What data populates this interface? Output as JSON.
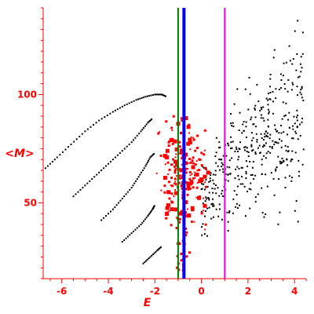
{
  "chart_data": {
    "type": "scatter",
    "xlabel": "E",
    "ylabel": "<M>",
    "xlim": [
      -6.8,
      4.5
    ],
    "ylim": [
      15,
      140
    ],
    "x_ticks": [
      -6,
      -4,
      -2,
      0,
      2,
      4
    ],
    "y_ticks": [
      50,
      100
    ],
    "y_minor_step": 5,
    "x_minor_step": 0.5,
    "grid": false,
    "colors": {
      "axis": "#ff0000",
      "tick_label": "#ff0000",
      "black_points": "#000000",
      "red_points": "#ff0000",
      "vline_green": "#008000",
      "vline_blue": "#0000ff",
      "vline_magenta": "#ff00ff"
    },
    "vertical_lines": [
      {
        "name": "green line",
        "x": -1.0,
        "color": "#008000"
      },
      {
        "name": "blue line",
        "x": -0.75,
        "color": "#0000ff"
      },
      {
        "name": "magenta line",
        "x": 1.0,
        "color": "#ff00ff"
      }
    ],
    "dotted_curves": [
      {
        "series": "black",
        "points": [
          [
            -6.7,
            66
          ],
          [
            -6.2,
            71
          ],
          [
            -5.6,
            77
          ],
          [
            -5.0,
            83
          ],
          [
            -4.4,
            88
          ],
          [
            -3.8,
            92
          ],
          [
            -3.3,
            95
          ],
          [
            -2.8,
            97.5
          ],
          [
            -2.4,
            99
          ],
          [
            -2.0,
            100
          ],
          [
            -1.7,
            100
          ],
          [
            -1.5,
            99
          ]
        ]
      },
      {
        "series": "black",
        "points": [
          [
            -5.5,
            53
          ],
          [
            -5.0,
            58
          ],
          [
            -4.5,
            63
          ],
          [
            -4.0,
            68
          ],
          [
            -3.5,
            73
          ],
          [
            -3.0,
            78
          ],
          [
            -2.6,
            83
          ],
          [
            -2.3,
            87
          ],
          [
            -2.1,
            89
          ]
        ]
      },
      {
        "series": "black",
        "points": [
          [
            -4.3,
            42
          ],
          [
            -3.8,
            47
          ],
          [
            -3.4,
            52
          ],
          [
            -3.0,
            57
          ],
          [
            -2.7,
            62
          ],
          [
            -2.4,
            67
          ],
          [
            -2.2,
            71
          ],
          [
            -2.0,
            73
          ]
        ]
      },
      {
        "series": "black",
        "points": [
          [
            -3.4,
            32
          ],
          [
            -3.0,
            36
          ],
          [
            -2.6,
            40
          ],
          [
            -2.3,
            44
          ],
          [
            -2.1,
            47
          ],
          [
            -2.0,
            49
          ]
        ]
      },
      {
        "series": "black",
        "points": [
          [
            -2.5,
            22
          ],
          [
            -2.2,
            25
          ],
          [
            -1.9,
            28
          ],
          [
            -1.7,
            30
          ]
        ]
      }
    ]
  }
}
